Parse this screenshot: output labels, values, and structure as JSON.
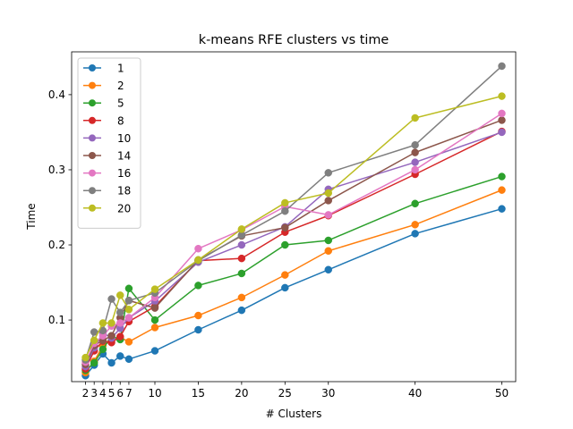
{
  "chart_data": {
    "type": "line",
    "title": "k-means RFE clusters vs time",
    "xlabel": "# Clusters",
    "ylabel": "Time",
    "xlim": [
      0.4,
      51.6
    ],
    "ylim": [
      0.018,
      0.457
    ],
    "xticks": [
      2,
      3,
      4,
      5,
      6,
      7,
      10,
      15,
      20,
      25,
      30,
      40,
      50
    ],
    "xtick_labels": [
      "2",
      "3",
      "4",
      "5",
      "6",
      "7",
      "10",
      "15",
      "20",
      "25",
      "30",
      "40",
      "50"
    ],
    "yticks": [
      0.1,
      0.2,
      0.3,
      0.4
    ],
    "ytick_labels": [
      "0.1",
      "0.2",
      "0.3",
      "0.4"
    ],
    "grid": false,
    "legend_position": "upper-left",
    "x": [
      2,
      3,
      4,
      5,
      6,
      7,
      10,
      15,
      20,
      25,
      30,
      40,
      50
    ],
    "series": [
      {
        "name": "1",
        "color": "#1f77b4",
        "values": [
          0.026,
          0.04,
          0.055,
          0.043,
          0.052,
          0.048,
          0.059,
          0.087,
          0.113,
          0.143,
          0.167,
          0.215,
          0.248
        ]
      },
      {
        "name": "2",
        "color": "#ff7f0e",
        "values": [
          0.03,
          0.045,
          0.066,
          0.073,
          0.077,
          0.071,
          0.09,
          0.106,
          0.13,
          0.16,
          0.192,
          0.227,
          0.273
        ]
      },
      {
        "name": "5",
        "color": "#2ca02c",
        "values": [
          0.033,
          0.043,
          0.061,
          0.079,
          0.074,
          0.142,
          0.1,
          0.146,
          0.162,
          0.2,
          0.206,
          0.255,
          0.291
        ]
      },
      {
        "name": "8",
        "color": "#d62728",
        "values": [
          0.035,
          0.059,
          0.072,
          0.07,
          0.078,
          0.098,
          0.118,
          0.179,
          0.182,
          0.217,
          0.239,
          0.294,
          0.351
        ]
      },
      {
        "name": "10",
        "color": "#9467bd",
        "values": [
          0.038,
          0.063,
          0.083,
          0.076,
          0.089,
          0.103,
          0.125,
          0.177,
          0.2,
          0.224,
          0.274,
          0.31,
          0.35
        ]
      },
      {
        "name": "14",
        "color": "#8c564b",
        "values": [
          0.041,
          0.066,
          0.073,
          0.079,
          0.103,
          0.126,
          0.116,
          0.18,
          0.212,
          0.223,
          0.259,
          0.323,
          0.366
        ]
      },
      {
        "name": "16",
        "color": "#e377c2",
        "values": [
          0.044,
          0.069,
          0.079,
          0.092,
          0.096,
          0.103,
          0.13,
          0.195,
          0.22,
          0.251,
          0.24,
          0.3,
          0.375
        ]
      },
      {
        "name": "18",
        "color": "#7f7f7f",
        "values": [
          0.047,
          0.084,
          0.086,
          0.128,
          0.11,
          0.126,
          0.136,
          0.179,
          0.213,
          0.245,
          0.296,
          0.333,
          0.438
        ]
      },
      {
        "name": "20",
        "color": "#bcbd22",
        "values": [
          0.05,
          0.073,
          0.096,
          0.096,
          0.133,
          0.114,
          0.141,
          0.18,
          0.221,
          0.256,
          0.269,
          0.369,
          0.398
        ]
      }
    ]
  }
}
